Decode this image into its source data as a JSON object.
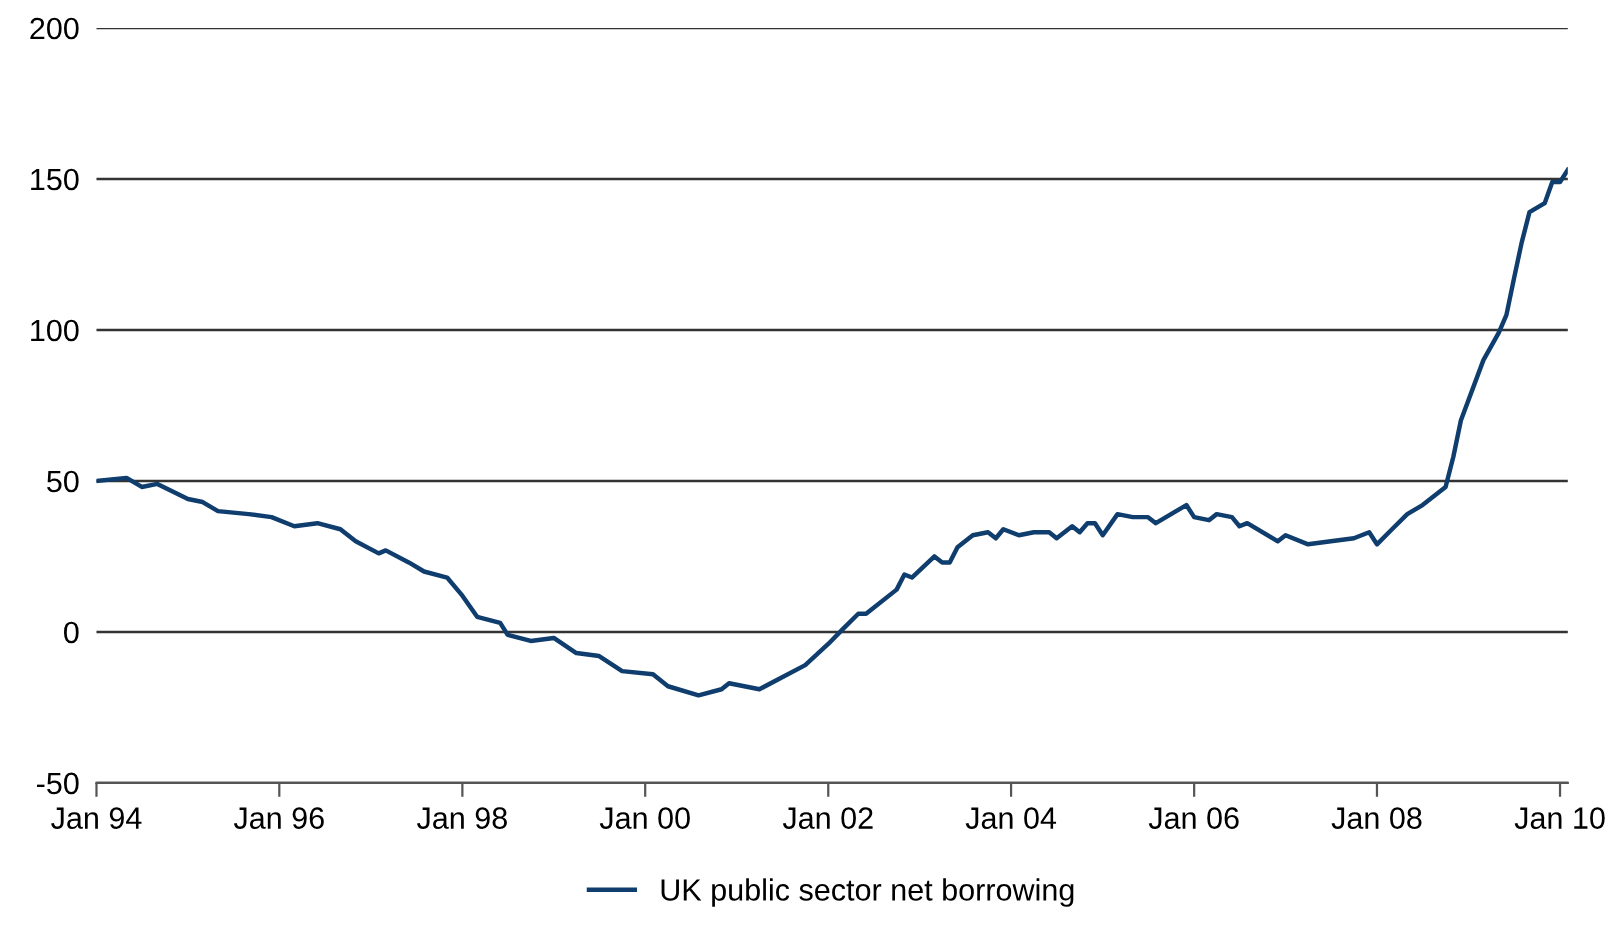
{
  "chart_data": {
    "type": "line",
    "x": [
      "1994-01",
      "1994-05",
      "1994-07",
      "1994-09",
      "1995-01",
      "1995-03",
      "1995-05",
      "1995-09",
      "1995-12",
      "1996-03",
      "1996-06",
      "1996-09",
      "1996-11",
      "1997-02",
      "1997-03",
      "1997-06",
      "1997-08",
      "1997-11",
      "1998-01",
      "1998-03",
      "1998-06",
      "1998-07",
      "1998-10",
      "1999-01",
      "1999-04",
      "1999-07",
      "1999-10",
      "2000-02",
      "2000-04",
      "2000-08",
      "2000-11",
      "2000-12",
      "2001-04",
      "2001-07",
      "2001-10",
      "2002-01",
      "2002-03",
      "2002-05",
      "2002-06",
      "2002-10",
      "2002-11",
      "2002-12",
      "2003-03",
      "2003-04",
      "2003-05",
      "2003-06",
      "2003-08",
      "2003-10",
      "2003-11",
      "2003-12",
      "2004-02",
      "2004-04",
      "2004-06",
      "2004-07",
      "2004-09",
      "2004-10",
      "2004-11",
      "2004-12",
      "2005-01",
      "2005-03",
      "2005-05",
      "2005-07",
      "2005-08",
      "2005-12",
      "2006-01",
      "2006-03",
      "2006-04",
      "2006-06",
      "2006-07",
      "2006-08",
      "2006-12",
      "2007-01",
      "2007-04",
      "2007-07",
      "2007-10",
      "2007-12",
      "2008-01",
      "2008-03",
      "2008-05",
      "2008-07",
      "2008-10",
      "2008-11",
      "2008-12",
      "2009-03",
      "2009-05",
      "2009-06",
      "2009-07",
      "2009-08",
      "2009-09",
      "2009-11",
      "2009-12",
      "2010-01",
      "2010-02"
    ],
    "series": [
      {
        "name": "UK public sector net borrowing",
        "color": "#0f3d6e",
        "values": [
          50,
          51,
          48,
          49,
          44,
          43,
          40,
          39,
          38,
          35,
          36,
          34,
          30,
          26,
          27,
          23,
          20,
          18,
          12,
          5,
          3,
          -1,
          -3,
          -2,
          -7,
          -8,
          -13,
          -14,
          -18,
          -21,
          -19,
          -17,
          -19,
          -15,
          -11,
          -4,
          1,
          6,
          6,
          14,
          19,
          18,
          25,
          23,
          23,
          28,
          32,
          33,
          31,
          34,
          32,
          33,
          33,
          31,
          35,
          33,
          36,
          36,
          32,
          39,
          38,
          38,
          36,
          42,
          38,
          37,
          39,
          38,
          35,
          36,
          30,
          32,
          29,
          30,
          31,
          33,
          29,
          34,
          39,
          42,
          48,
          58,
          70,
          90,
          99,
          105,
          117,
          129,
          139,
          142,
          149,
          149,
          153
        ]
      }
    ],
    "xlim": [
      "1994-01",
      "2010-02"
    ],
    "xticks": [
      {
        "value": "1994-01",
        "label": "Jan 94"
      },
      {
        "value": "1996-01",
        "label": "Jan 96"
      },
      {
        "value": "1998-01",
        "label": "Jan 98"
      },
      {
        "value": "2000-01",
        "label": "Jan 00"
      },
      {
        "value": "2002-01",
        "label": "Jan 02"
      },
      {
        "value": "2004-01",
        "label": "Jan 04"
      },
      {
        "value": "2006-01",
        "label": "Jan 06"
      },
      {
        "value": "2008-01",
        "label": "Jan 08"
      },
      {
        "value": "2010-01",
        "label": "Jan 10"
      }
    ],
    "ylim": [
      -50,
      200
    ],
    "yticks": [
      -50,
      0,
      50,
      100,
      150,
      200
    ],
    "grid": "y",
    "legend": "bottom"
  }
}
